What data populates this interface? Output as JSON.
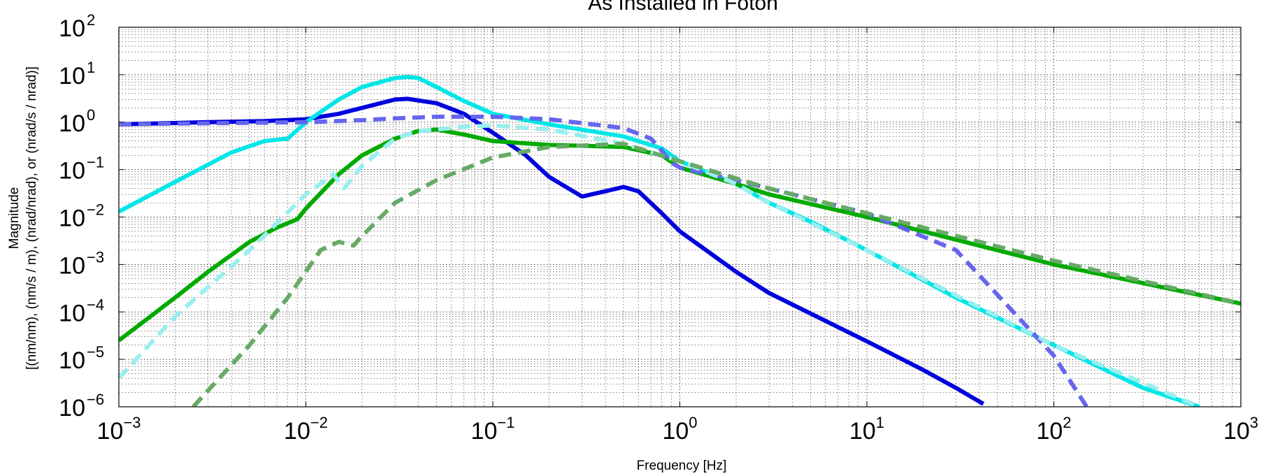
{
  "chart_data": {
    "type": "line",
    "title": "As Installed in Foton",
    "xlabel": "Frequency [Hz]",
    "ylabel_lines": [
      "Magnitude",
      "[(nm/nm), (nm/s / m), (nrad/nrad), or (nrad/s / nrad)]"
    ],
    "x_scale": "log",
    "y_scale": "log",
    "xlim": [
      0.001,
      1000
    ],
    "ylim": [
      1e-06,
      100
    ],
    "x_ticks": [
      {
        "base": "10",
        "exp": "−3"
      },
      {
        "base": "10",
        "exp": "−2"
      },
      {
        "base": "10",
        "exp": "−1"
      },
      {
        "base": "10",
        "exp": "0"
      },
      {
        "base": "10",
        "exp": "1"
      },
      {
        "base": "10",
        "exp": "2"
      },
      {
        "base": "10",
        "exp": "3"
      }
    ],
    "y_ticks": [
      {
        "base": "10",
        "exp": "2"
      },
      {
        "base": "10",
        "exp": "1"
      },
      {
        "base": "10",
        "exp": "0"
      },
      {
        "base": "10",
        "exp": "−1"
      },
      {
        "base": "10",
        "exp": "−2"
      },
      {
        "base": "10",
        "exp": "−3"
      },
      {
        "base": "10",
        "exp": "−4"
      },
      {
        "base": "10",
        "exp": "−5"
      },
      {
        "base": "10",
        "exp": "−6"
      }
    ],
    "grid": true,
    "series": [
      {
        "color": "#0000dd",
        "dash": "solid",
        "x": [
          0.001,
          0.003,
          0.006,
          0.01,
          0.015,
          0.02,
          0.03,
          0.035,
          0.05,
          0.07,
          0.1,
          0.15,
          0.2,
          0.3,
          0.4,
          0.5,
          0.6,
          0.8,
          1,
          2,
          3,
          10,
          20,
          30,
          42
        ],
        "y": [
          0.9,
          1.0,
          1.05,
          1.15,
          1.5,
          2.0,
          3.0,
          3.1,
          2.5,
          1.5,
          0.6,
          0.2,
          0.07,
          0.027,
          0.035,
          0.043,
          0.035,
          0.012,
          0.005,
          0.0007,
          0.00025,
          2.4e-05,
          6e-06,
          2.5e-06,
          1.15e-06
        ]
      },
      {
        "color": "#00e6e6",
        "dash": "solid",
        "x": [
          0.001,
          0.002,
          0.004,
          0.006,
          0.008,
          0.01,
          0.015,
          0.02,
          0.03,
          0.035,
          0.04,
          0.05,
          0.07,
          0.1,
          0.2,
          0.5,
          0.8,
          1,
          2,
          3,
          5,
          10,
          30,
          100,
          300,
          600
        ],
        "y": [
          0.013,
          0.055,
          0.23,
          0.4,
          0.45,
          1.0,
          3.0,
          5.5,
          8.5,
          9.0,
          8.5,
          5.5,
          2.8,
          1.5,
          0.9,
          0.5,
          0.28,
          0.15,
          0.05,
          0.02,
          0.008,
          0.002,
          0.0002,
          2e-05,
          2.5e-06,
          1e-06
        ]
      },
      {
        "color": "#00aa00",
        "dash": "solid",
        "x": [
          0.001,
          0.002,
          0.003,
          0.005,
          0.007,
          0.009,
          0.01,
          0.015,
          0.02,
          0.03,
          0.04,
          0.05,
          0.07,
          0.1,
          0.2,
          0.5,
          0.8,
          1,
          2,
          3,
          10,
          100,
          1000
        ],
        "y": [
          2.5e-05,
          0.0002,
          0.0007,
          0.003,
          0.006,
          0.009,
          0.015,
          0.08,
          0.2,
          0.45,
          0.65,
          0.7,
          0.55,
          0.4,
          0.33,
          0.3,
          0.2,
          0.11,
          0.05,
          0.03,
          0.01,
          0.001,
          0.00015
        ]
      },
      {
        "color": "#6666ee",
        "dash": "dashed",
        "x": [
          0.001,
          0.01,
          0.02,
          0.03,
          0.05,
          0.1,
          0.2,
          0.5,
          0.7,
          0.8,
          0.9,
          1,
          2,
          3,
          10,
          30,
          100,
          150
        ],
        "y": [
          0.9,
          1.0,
          1.1,
          1.2,
          1.3,
          1.3,
          1.15,
          0.75,
          0.45,
          0.25,
          0.14,
          0.11,
          0.06,
          0.04,
          0.012,
          0.002,
          1.2e-05,
          1e-06
        ]
      },
      {
        "color": "#99eeee",
        "dash": "dashed",
        "x": [
          0.001,
          0.002,
          0.005,
          0.01,
          0.014,
          0.016,
          0.02,
          0.03,
          0.04,
          0.05,
          0.07,
          0.1,
          0.2,
          0.5,
          1,
          2,
          3,
          10,
          100,
          600
        ],
        "y": [
          4e-06,
          8e-05,
          0.002,
          0.03,
          0.08,
          0.04,
          0.12,
          0.45,
          0.65,
          0.7,
          0.8,
          0.85,
          0.7,
          0.35,
          0.15,
          0.05,
          0.02,
          0.002,
          2e-05,
          1e-06
        ]
      },
      {
        "color": "#66aa66",
        "dash": "dashed",
        "x": [
          0.0025,
          0.005,
          0.008,
          0.012,
          0.015,
          0.018,
          0.02,
          0.03,
          0.05,
          0.1,
          0.2,
          0.5,
          1,
          3,
          10,
          100,
          1000
        ],
        "y": [
          1e-06,
          2e-05,
          0.0002,
          0.002,
          0.003,
          0.0025,
          0.004,
          0.02,
          0.06,
          0.18,
          0.3,
          0.35,
          0.15,
          0.04,
          0.012,
          0.0012,
          0.00015
        ]
      }
    ]
  }
}
